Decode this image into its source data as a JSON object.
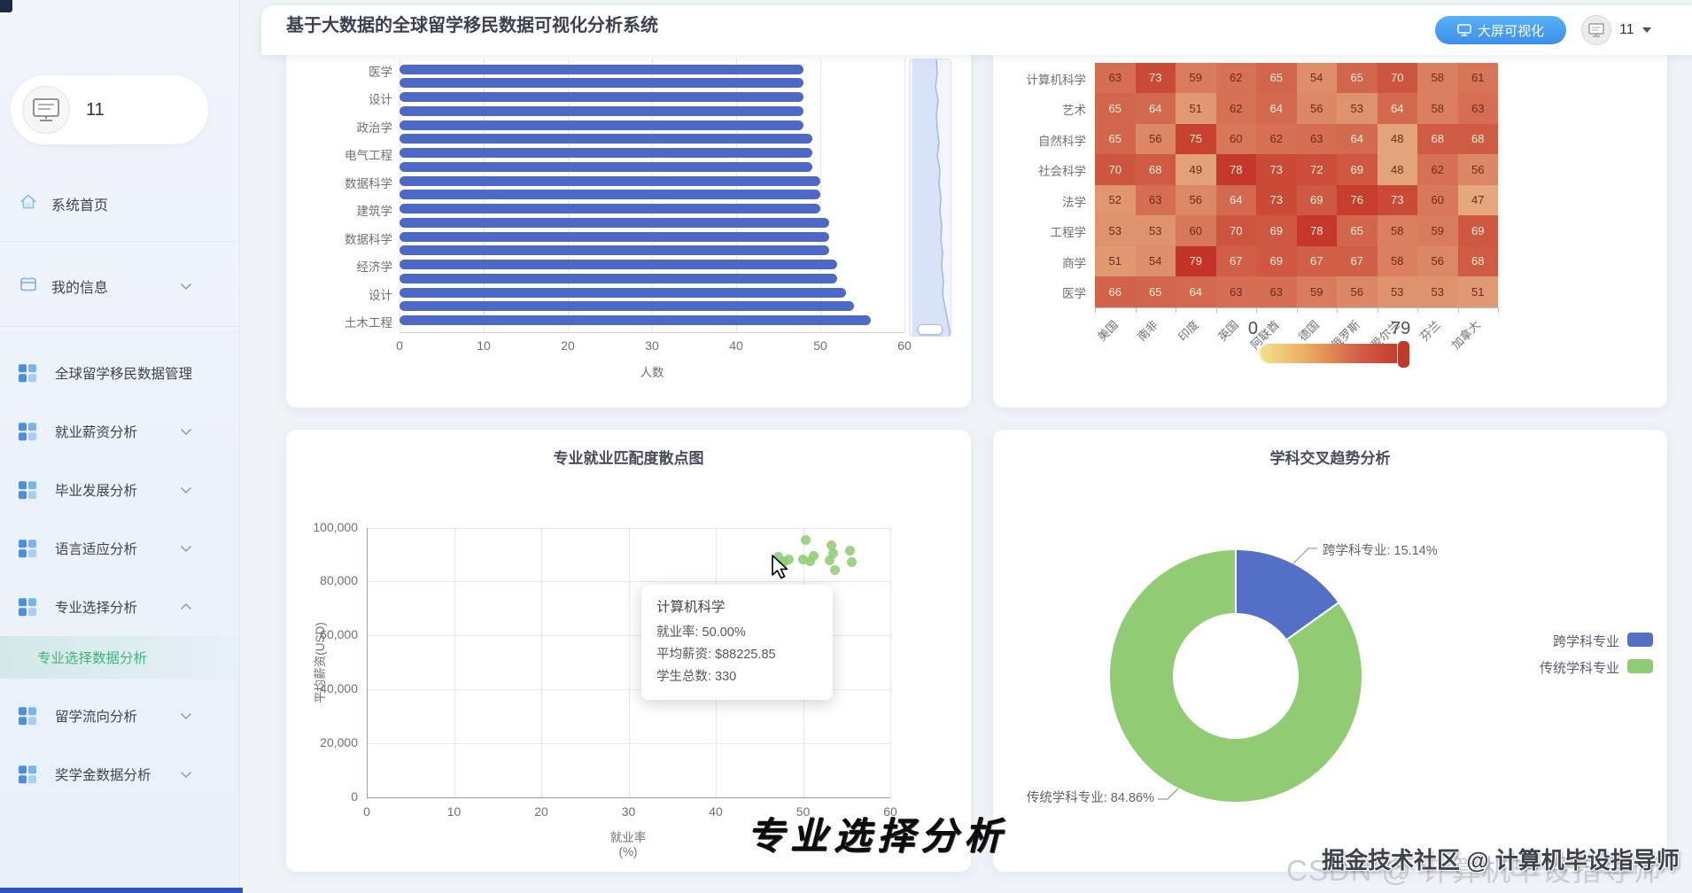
{
  "app_title": "基于大数据的全球留学移民数据可视化分析系统",
  "header": {
    "screen_button_label": "大屏可视化",
    "username": "11"
  },
  "sidebar": {
    "username": "11",
    "home_label": "系统首页",
    "profile_label": "我的信息",
    "menu": [
      {
        "label": "全球留学移民数据管理",
        "chevron": "none"
      },
      {
        "label": "就业薪资分析",
        "chevron": "down"
      },
      {
        "label": "毕业发展分析",
        "chevron": "down"
      },
      {
        "label": "语言适应分析",
        "chevron": "down"
      },
      {
        "label": "专业选择分析",
        "chevron": "up"
      },
      {
        "label": "留学流向分析",
        "chevron": "down"
      },
      {
        "label": "奖学金数据分析",
        "chevron": "down"
      }
    ],
    "active_submenu_label": "专业选择数据分析"
  },
  "chart_data": [
    {
      "id": "majors-bar",
      "type": "bar",
      "orientation": "horizontal",
      "categories": [
        "医学",
        "",
        "设计",
        "",
        "政治学",
        "",
        "电气工程",
        "",
        "数据科学",
        "",
        "建筑学",
        "",
        "数据科学",
        "",
        "经济学",
        "",
        "设计",
        "",
        "土木工程"
      ],
      "values": [
        48,
        48,
        48,
        48,
        48,
        49,
        49,
        49,
        50,
        50,
        50,
        51,
        51,
        51,
        52,
        52,
        53,
        54,
        56
      ],
      "xlabel": "人数",
      "xlim": [
        0,
        60
      ],
      "x_ticks": [
        "0",
        "10",
        "20",
        "30",
        "40",
        "50",
        "60"
      ],
      "bar_color": "#4e68c6",
      "has_datazoom_slider": true
    },
    {
      "id": "country-major-heatmap",
      "type": "heatmap",
      "rows": [
        "计算机科学",
        "艺术",
        "自然科学",
        "社会科学",
        "法学",
        "工程学",
        "商学",
        "医学"
      ],
      "columns": [
        "美国",
        "南非",
        "印度",
        "英国",
        "阿联酋",
        "德国",
        "俄罗斯",
        "爱尔兰",
        "芬兰",
        "加拿大"
      ],
      "values": [
        [
          63,
          73,
          59,
          62,
          65,
          54,
          65,
          70,
          58,
          61
        ],
        [
          65,
          64,
          51,
          62,
          64,
          56,
          53,
          64,
          58,
          63
        ],
        [
          65,
          56,
          75,
          60,
          62,
          63,
          64,
          48,
          68,
          68
        ],
        [
          70,
          68,
          49,
          78,
          73,
          72,
          69,
          48,
          62,
          56
        ],
        [
          52,
          63,
          56,
          64,
          73,
          69,
          76,
          73,
          60,
          47
        ],
        [
          53,
          53,
          60,
          70,
          69,
          78,
          65,
          58,
          59,
          69
        ],
        [
          51,
          54,
          79,
          67,
          69,
          67,
          67,
          58,
          56,
          68
        ],
        [
          66,
          65,
          64,
          63,
          63,
          59,
          56,
          53,
          53,
          51
        ]
      ],
      "visualmap": {
        "min_label": "0",
        "max_label": "79",
        "gradient": [
          "#f3e389",
          "#eaa961",
          "#d2604a",
          "#c43327"
        ]
      }
    },
    {
      "id": "employment-scatter",
      "type": "scatter",
      "title": "专业就业匹配度散点图",
      "xlabel": "就业率(%)",
      "ylabel": "平均薪资(USD)",
      "xlim": [
        0,
        60
      ],
      "ylim": [
        0,
        100000
      ],
      "x_ticks": [
        "0",
        "10",
        "20",
        "30",
        "40",
        "50",
        "60"
      ],
      "y_ticks": [
        "0",
        "20,000",
        "40,000",
        "60,000",
        "80,000",
        "100,000"
      ],
      "point_color": "#91cc75",
      "points": [
        [
          47.2,
          89000
        ],
        [
          47.6,
          86300
        ],
        [
          47.9,
          87500
        ],
        [
          48.4,
          88200
        ],
        [
          50.3,
          95400
        ],
        [
          50.0,
          88226
        ],
        [
          50.8,
          87400
        ],
        [
          51.2,
          89500
        ],
        [
          53.0,
          88000
        ],
        [
          53.2,
          93500
        ],
        [
          53.5,
          90400
        ],
        [
          53.7,
          84300
        ],
        [
          55.4,
          91400
        ],
        [
          55.6,
          87200
        ]
      ],
      "tooltip": {
        "title": "计算机科学",
        "lines": [
          "就业率: 50.00%",
          "平均薪资: $88225.85",
          "学生总数: 330"
        ]
      }
    },
    {
      "id": "discipline-donut",
      "type": "pie",
      "title": "学科交叉趋势分析",
      "slices": [
        {
          "name": "跨学科专业",
          "value": 15.14,
          "color": "#5470c6",
          "callout": "跨学科专业: 15.14%"
        },
        {
          "name": "传统学科专业",
          "value": 84.86,
          "color": "#91cc75",
          "callout": "传统学科专业: 84.86%"
        }
      ],
      "legend": [
        "跨学科专业",
        "传统学科专业"
      ]
    }
  ],
  "watermarks": {
    "calligraphy": "专业选择分析",
    "gray_back": "CSDN @ 计算机毕设指导师",
    "dark_front": "掘金技术社区 @ 计算机毕设指导师"
  }
}
